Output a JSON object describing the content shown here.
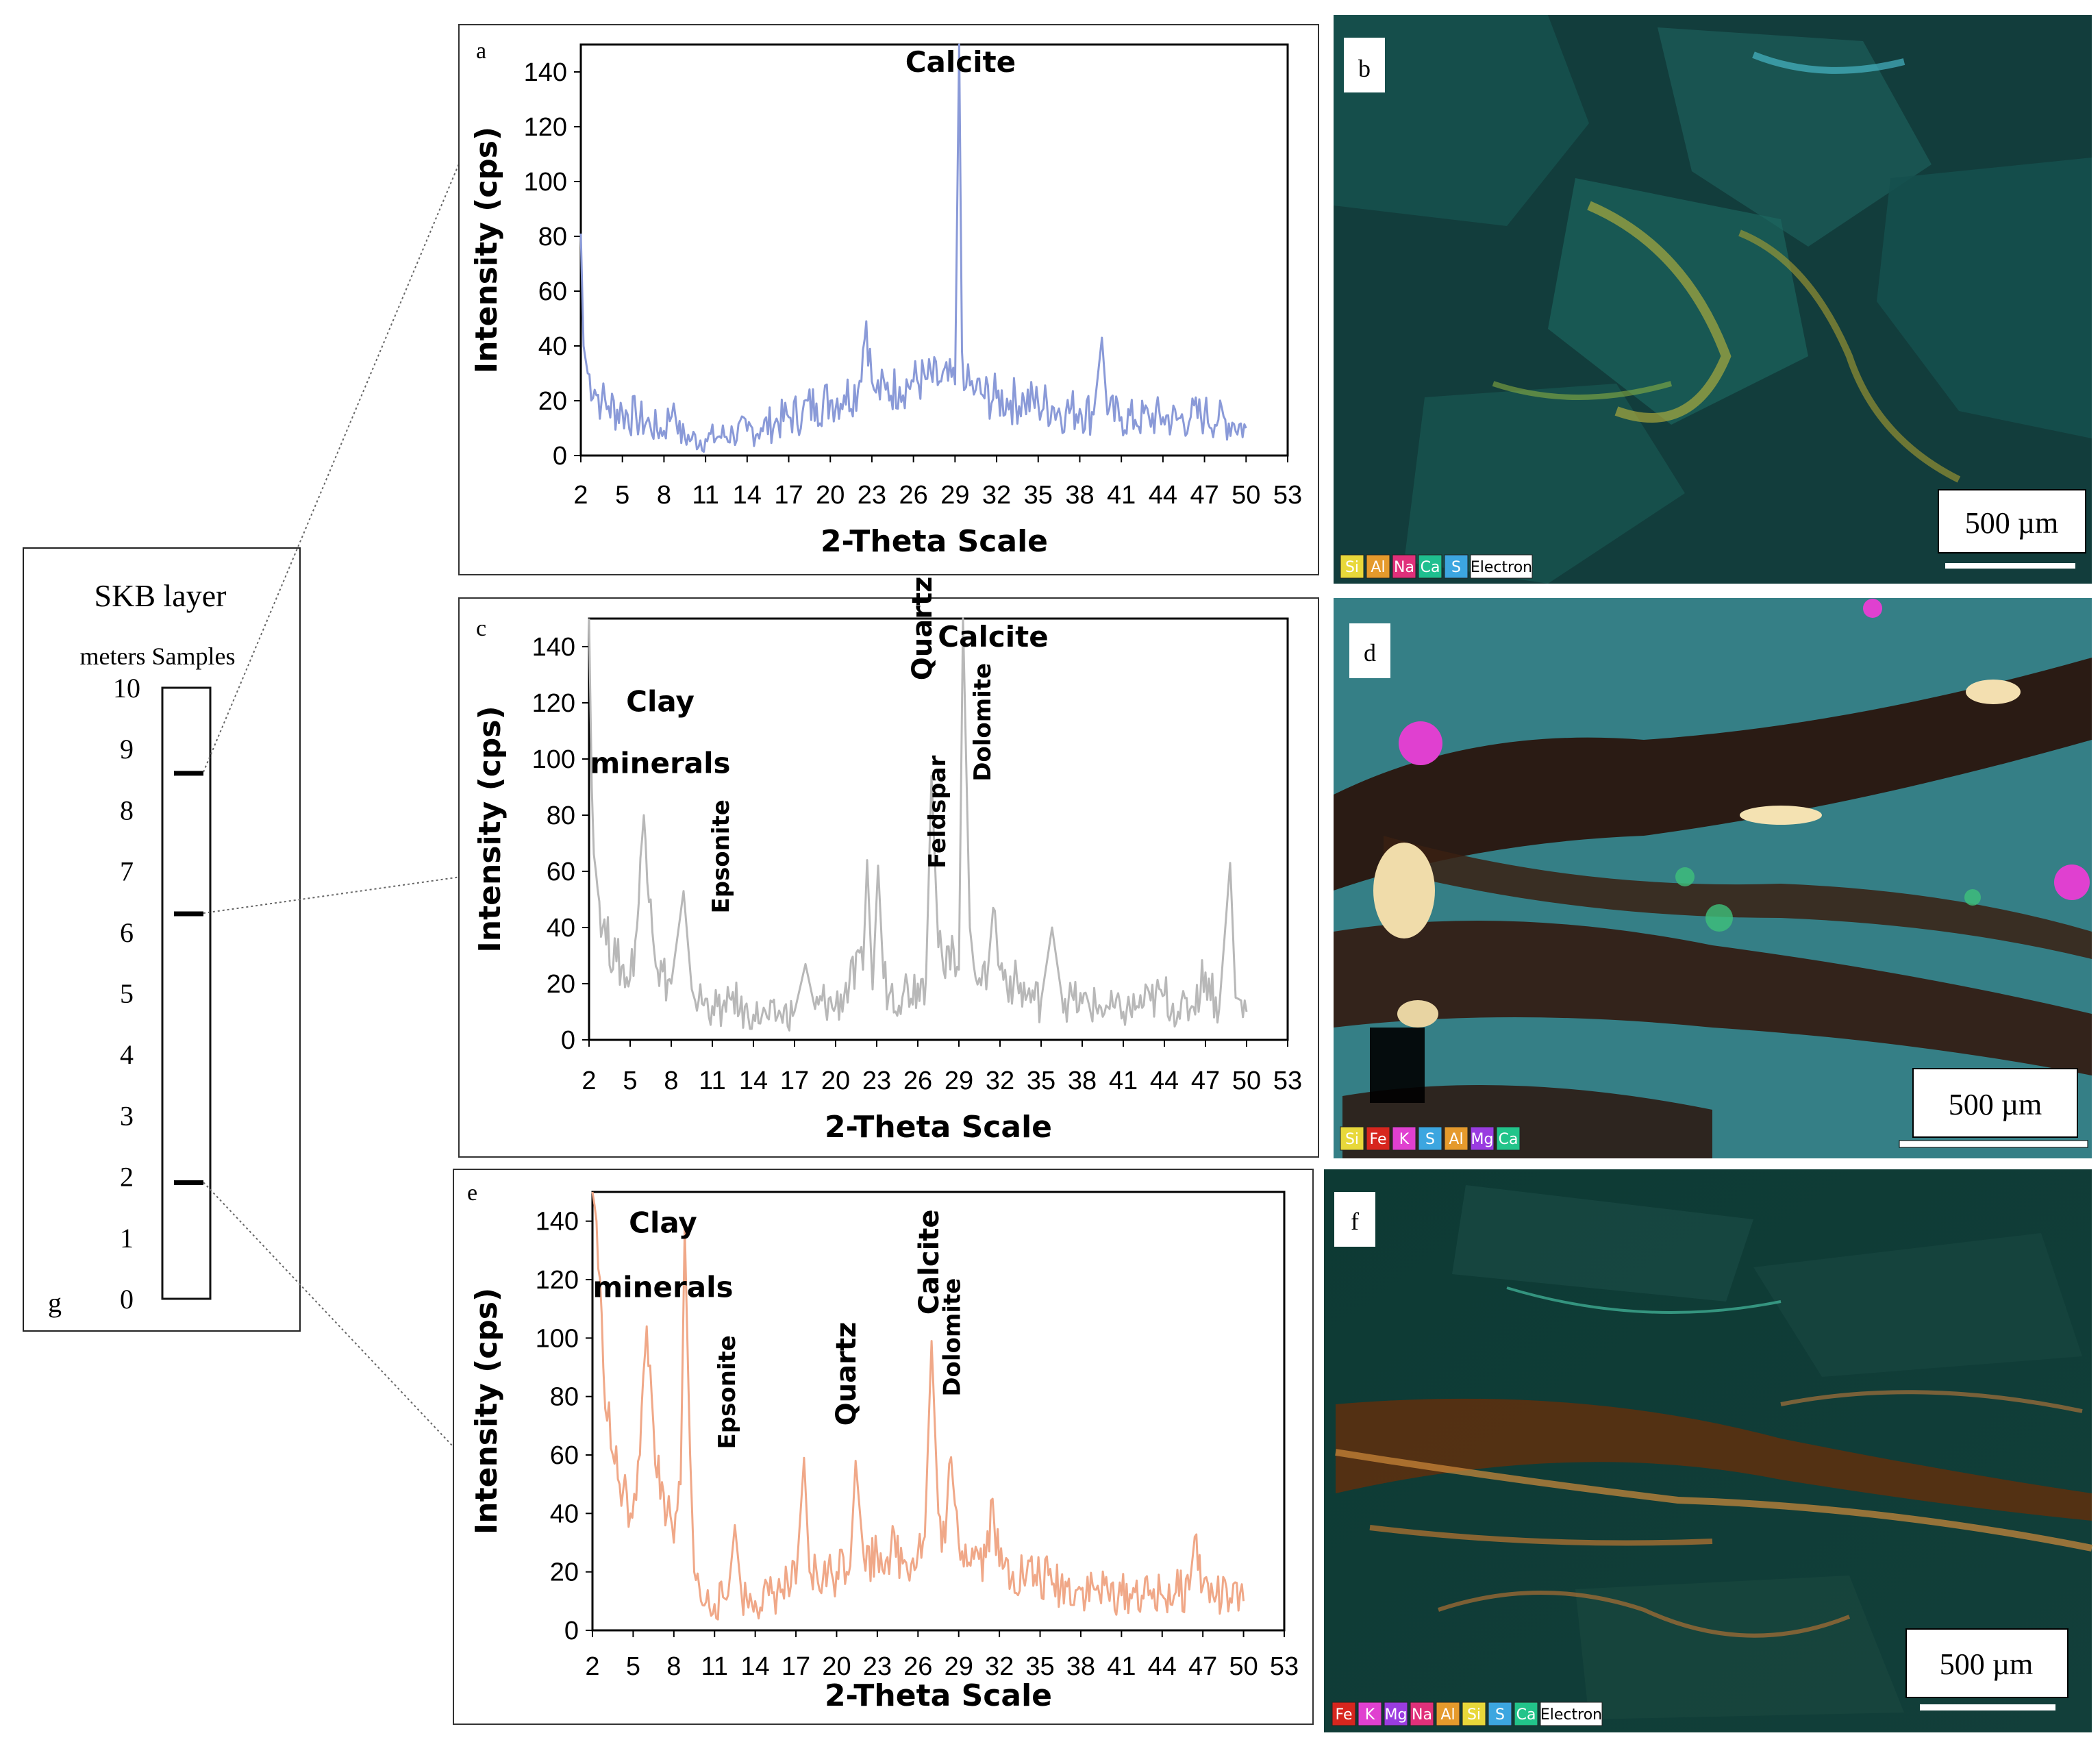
{
  "figure": {
    "column": {
      "title": "SKB layer",
      "header": "meters Samples",
      "tick_labels": [
        "10",
        "9",
        "8",
        "7",
        "6",
        "5",
        "4",
        "3",
        "2",
        "1",
        "0"
      ],
      "sample_depths_m": [
        8.6,
        6.3,
        1.9
      ],
      "panel_letter": "g"
    },
    "xrd_shared": {
      "xlabel": "2-Theta Scale",
      "ylabel": "Intensity (cps)",
      "y_ticks": [
        "0",
        "20",
        "40",
        "60",
        "80",
        "100",
        "120",
        "140"
      ],
      "x_ticks": [
        "2",
        "5",
        "8",
        "11",
        "14",
        "17",
        "20",
        "23",
        "26",
        "29",
        "32",
        "35",
        "38",
        "41",
        "44",
        "47",
        "50",
        "53"
      ],
      "xlim": [
        2,
        53
      ],
      "ylim": [
        0,
        150
      ]
    },
    "micrographs": [
      {
        "letter": "b",
        "scale_bar": "500 µm",
        "legend": [
          "Si",
          "Al",
          "Na",
          "Ca",
          "S",
          "Electron"
        ],
        "legend_colors": [
          "#e8d83a",
          "#e59a2c",
          "#e0307a",
          "#1fbf8f",
          "#3ca6e0",
          "#ffffff"
        ]
      },
      {
        "letter": "d",
        "scale_bar": "500 µm",
        "legend": [
          "Si",
          "Fe",
          "K",
          "S",
          "Al",
          "Mg",
          "Ca"
        ],
        "legend_colors": [
          "#e8d83a",
          "#d7261e",
          "#e040d0",
          "#3ca6e0",
          "#e59a2c",
          "#9a3ce0",
          "#22c48a"
        ]
      },
      {
        "letter": "f",
        "scale_bar": "500 µm",
        "legend": [
          "Fe",
          "K",
          "Mg",
          "Na",
          "Al",
          "Si",
          "S",
          "Ca",
          "Electron"
        ],
        "legend_colors": [
          "#d7261e",
          "#e040d0",
          "#9a3ce0",
          "#e0307a",
          "#e59a2c",
          "#e8d83a",
          "#3ca6e0",
          "#22c48a",
          "#ffffff"
        ]
      }
    ]
  },
  "chart_data": [
    {
      "type": "line",
      "panel": "a",
      "color": "#8a9ad8",
      "title": "",
      "xlabel": "2-Theta Scale",
      "ylabel": "Intensity (cps)",
      "xlim": [
        2,
        53
      ],
      "ylim": [
        0,
        150
      ],
      "annotations": [
        {
          "text": "Calcite",
          "x": 29.4,
          "y": 140,
          "rotation": 0
        }
      ],
      "x": [
        2,
        2.2,
        2.5,
        3,
        3.5,
        4,
        5,
        6,
        7,
        8,
        8.7,
        9,
        10,
        11,
        12,
        13,
        14,
        15,
        16,
        17,
        18,
        19,
        20,
        21,
        22,
        22.6,
        23,
        23.3,
        24,
        25,
        26,
        27,
        28,
        29,
        29.3,
        29.5,
        29.8,
        30.5,
        31,
        32,
        33,
        34,
        35,
        36,
        37,
        38,
        39,
        39.6,
        40,
        41,
        42,
        43,
        44,
        45,
        46,
        47,
        48,
        49,
        50
      ],
      "y": [
        81,
        40,
        30,
        24,
        20,
        18,
        16,
        14,
        11,
        9,
        19,
        8,
        6,
        6,
        7,
        8,
        9,
        10,
        12,
        14,
        16,
        19,
        20,
        22,
        24,
        49,
        27,
        23,
        24,
        25,
        27,
        28,
        27,
        26,
        150,
        38,
        25,
        24,
        22,
        21,
        20,
        20,
        19,
        18,
        16,
        17,
        15,
        43,
        15,
        14,
        13,
        14,
        14,
        13,
        14,
        15,
        13,
        12,
        10
      ]
    },
    {
      "type": "line",
      "panel": "c",
      "color": "#b8b8b8",
      "title": "",
      "xlabel": "2-Theta Scale",
      "ylabel": "Intensity (cps)",
      "xlim": [
        2,
        53
      ],
      "ylim": [
        0,
        150
      ],
      "annotations": [
        {
          "text": "Clay",
          "x": 7.2,
          "y": 117,
          "rotation": 0
        },
        {
          "text": "minerals",
          "x": 7.2,
          "y": 95,
          "rotation": 0
        },
        {
          "text": "Epsonite",
          "x": 12.2,
          "y": 45,
          "rotation": -90
        },
        {
          "text": "Quartz",
          "x": 27.0,
          "y": 128,
          "rotation": -90
        },
        {
          "text": "Feldspar",
          "x": 28.0,
          "y": 61,
          "rotation": -90
        },
        {
          "text": "Calcite",
          "x": 31.5,
          "y": 140,
          "rotation": 0
        },
        {
          "text": "Dolomite",
          "x": 31.3,
          "y": 92,
          "rotation": -90
        }
      ],
      "x": [
        2,
        2.2,
        2.5,
        3,
        4,
        5,
        5.5,
        6,
        6.5,
        7,
        8,
        8.9,
        9.5,
        10,
        11,
        12,
        12.5,
        13,
        14,
        15,
        16,
        17,
        17.8,
        18.5,
        19,
        20,
        21,
        22,
        22.3,
        22.7,
        23.1,
        23.5,
        24,
        25,
        26,
        26.6,
        27,
        27.5,
        28,
        28.5,
        29,
        29.3,
        29.8,
        30.5,
        31,
        31.5,
        32,
        33,
        34,
        35,
        35.8,
        36.5,
        37,
        38,
        39,
        40,
        41,
        42,
        43,
        44,
        45,
        46,
        47,
        48,
        48.8,
        49.2,
        50
      ],
      "y": [
        150,
        90,
        60,
        40,
        28,
        22,
        40,
        80,
        50,
        25,
        20,
        53,
        18,
        14,
        12,
        10,
        17,
        10,
        9,
        8,
        9,
        10,
        27,
        11,
        14,
        12,
        20,
        25,
        64,
        18,
        62,
        22,
        17,
        18,
        20,
        22,
        94,
        33,
        22,
        37,
        25,
        150,
        40,
        22,
        18,
        47,
        25,
        20,
        16,
        14,
        40,
        16,
        14,
        13,
        12,
        11,
        10,
        12,
        14,
        16,
        10,
        12,
        24,
        11,
        63,
        15,
        10
      ]
    },
    {
      "type": "line",
      "panel": "e",
      "color": "#f0a888",
      "title": "",
      "xlabel": "2-Theta Scale",
      "ylabel": "Intensity (cps)",
      "xlim": [
        2,
        53
      ],
      "ylim": [
        0,
        150
      ],
      "annotations": [
        {
          "text": "Clay",
          "x": 7.2,
          "y": 136,
          "rotation": 0
        },
        {
          "text": "minerals",
          "x": 7.2,
          "y": 114,
          "rotation": 0
        },
        {
          "text": "Epsonite",
          "x": 12.5,
          "y": 62,
          "rotation": -90
        },
        {
          "text": "Quartz",
          "x": 21.4,
          "y": 70,
          "rotation": -90
        },
        {
          "text": "Calcite",
          "x": 27.5,
          "y": 108,
          "rotation": -90
        },
        {
          "text": "Dolomite",
          "x": 29.1,
          "y": 80,
          "rotation": -90
        }
      ],
      "x": [
        2,
        2.3,
        2.8,
        3.5,
        4,
        4.8,
        5.5,
        6,
        6.5,
        7,
        7.5,
        8,
        8.5,
        8.8,
        9.2,
        9.5,
        10,
        11,
        12,
        12.5,
        13,
        14,
        15,
        16,
        17,
        17.6,
        18,
        19,
        20,
        20.5,
        21,
        21.4,
        22,
        23,
        24,
        25,
        26,
        26.5,
        27,
        27.5,
        28,
        28.3,
        29,
        30,
        31,
        31.5,
        32,
        33,
        34,
        35,
        36,
        37,
        38,
        39,
        40,
        41,
        42,
        43,
        44,
        45,
        46,
        46.4,
        47,
        48,
        49,
        50
      ],
      "y": [
        150,
        140,
        90,
        60,
        50,
        40,
        60,
        104,
        70,
        45,
        40,
        30,
        50,
        138,
        60,
        20,
        10,
        9,
        12,
        36,
        12,
        10,
        12,
        14,
        16,
        59,
        20,
        18,
        20,
        25,
        22,
        58,
        25,
        26,
        28,
        24,
        27,
        32,
        99,
        40,
        30,
        57,
        30,
        28,
        25,
        45,
        22,
        20,
        19,
        18,
        16,
        15,
        14,
        14,
        13,
        12,
        13,
        12,
        12,
        13,
        14,
        32,
        15,
        12,
        11,
        10
      ]
    }
  ]
}
